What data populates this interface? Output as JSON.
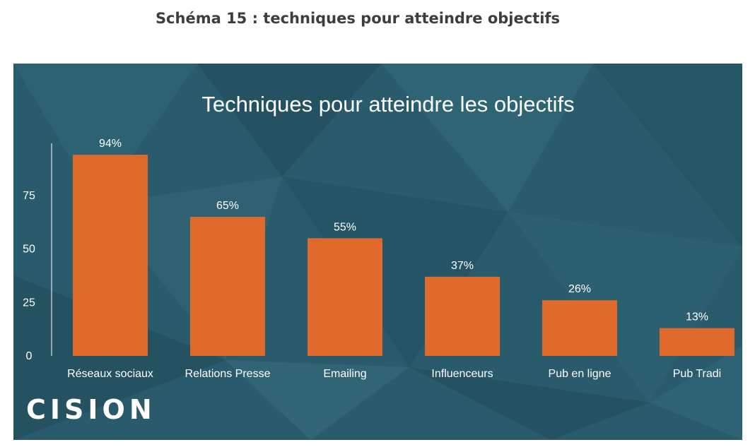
{
  "caption": "Schéma 15 : techniques pour atteindre objectifs",
  "logo_text": "CISION",
  "colors": {
    "panel_bg": "#2a5b6c",
    "bar": "#e06a2b",
    "text": "#ffffff",
    "caption": "#3d3d3d"
  },
  "chart_data": {
    "type": "bar",
    "title": "Techniques pour atteindre les objectifs",
    "xlabel": "",
    "ylabel": "",
    "categories": [
      "Réseaux sociaux",
      "Relations Presse",
      "Emailing",
      "Influenceurs",
      "Pub en ligne",
      "Pub Tradi"
    ],
    "values": [
      94,
      65,
      55,
      37,
      26,
      13
    ],
    "value_labels": [
      "94%",
      "65%",
      "55%",
      "37%",
      "26%",
      "13%"
    ],
    "yticks": [
      0,
      25,
      50,
      75
    ],
    "ylim": [
      0,
      100
    ],
    "grid": false,
    "legend": "none"
  }
}
